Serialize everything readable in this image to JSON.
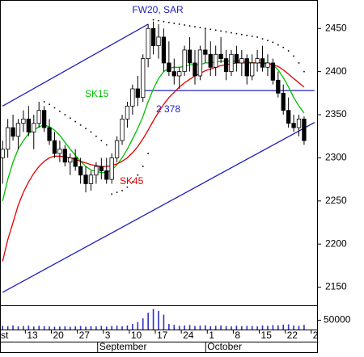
{
  "chart_data": {
    "type": "candlestick",
    "title": "FW20, SAR",
    "categories": [
      null,
      null,
      null,
      null,
      null,
      "13",
      null,
      null,
      null,
      null,
      "20",
      null,
      null,
      null,
      null,
      "27",
      null,
      null,
      null,
      null,
      "3",
      null,
      null,
      null,
      null,
      "10",
      null,
      null,
      null,
      null,
      "17",
      null,
      null,
      null,
      null,
      "24",
      null,
      null,
      null,
      null,
      "1",
      null,
      null,
      null,
      null,
      "8",
      null,
      null,
      null,
      null,
      "15",
      null,
      null,
      null,
      null,
      "22",
      null,
      null,
      null,
      null,
      "2"
    ],
    "months": [
      "st",
      "September",
      "October"
    ],
    "open": [
      2300,
      2310,
      2335,
      2325,
      2340,
      2345,
      2330,
      2340,
      2355,
      2335,
      2320,
      2305,
      2310,
      2295,
      2300,
      2290,
      2280,
      2270,
      2280,
      2290,
      2285,
      2275,
      2300,
      2320,
      2345,
      2360,
      2380,
      2370,
      2415,
      2450,
      2430,
      2440,
      2410,
      2400,
      2395,
      2400,
      2425,
      2410,
      2395,
      2425,
      2420,
      2405,
      2420,
      2415,
      2400,
      2420,
      2410,
      2415,
      2395,
      2410,
      2415,
      2405,
      2410,
      2390,
      2375,
      2355,
      2340,
      2335,
      2345,
      null,
      null
    ],
    "high": [
      2320,
      2345,
      2350,
      2345,
      2355,
      2360,
      2350,
      2365,
      2360,
      2345,
      2330,
      2320,
      2315,
      2305,
      2310,
      2300,
      2290,
      2285,
      2295,
      2300,
      2300,
      2305,
      2325,
      2350,
      2365,
      2385,
      2395,
      2420,
      2455,
      2458,
      2455,
      2450,
      2435,
      2415,
      2405,
      2430,
      2440,
      2425,
      2430,
      2450,
      2435,
      2430,
      2440,
      2425,
      2425,
      2430,
      2425,
      2420,
      2420,
      2425,
      2430,
      2420,
      2415,
      2400,
      2385,
      2370,
      2350,
      2350,
      2348,
      null,
      null
    ],
    "low": [
      2270,
      2300,
      2320,
      2310,
      2330,
      2325,
      2310,
      2335,
      2330,
      2315,
      2300,
      2295,
      2290,
      2280,
      2285,
      2270,
      2260,
      2262,
      2270,
      2275,
      2270,
      2270,
      2295,
      2315,
      2335,
      2350,
      2360,
      2365,
      2405,
      2420,
      2415,
      2400,
      2395,
      2385,
      2380,
      2395,
      2400,
      2385,
      2390,
      2410,
      2395,
      2395,
      2410,
      2390,
      2395,
      2400,
      2395,
      2385,
      2390,
      2400,
      2400,
      2395,
      2385,
      2370,
      2350,
      2335,
      2330,
      2325,
      2315,
      null,
      null
    ],
    "close": [
      2310,
      2335,
      2325,
      2340,
      2345,
      2330,
      2340,
      2355,
      2335,
      2320,
      2305,
      2310,
      2295,
      2300,
      2290,
      2280,
      2270,
      2280,
      2290,
      2285,
      2275,
      2300,
      2320,
      2345,
      2360,
      2380,
      2370,
      2415,
      2450,
      2430,
      2440,
      2410,
      2400,
      2395,
      2400,
      2425,
      2410,
      2395,
      2425,
      2420,
      2405,
      2420,
      2415,
      2400,
      2420,
      2410,
      2415,
      2395,
      2410,
      2415,
      2405,
      2410,
      2390,
      2375,
      2355,
      2340,
      2335,
      2345,
      2320,
      null,
      null
    ],
    "up_color": "#ffffff",
    "down_color": "#000000",
    "ylim": [
      2129,
      2483
    ],
    "yticks": [
      2150,
      2200,
      2250,
      2300,
      2350,
      2400,
      2450
    ],
    "overlays": [
      {
        "name": "SK15",
        "color": "#00c000",
        "values": [
          2250,
          2275,
          2295,
          2310,
          2320,
          2328,
          2332,
          2336,
          2338,
          2336,
          2332,
          2326,
          2318,
          2310,
          2303,
          2296,
          2290,
          2286,
          2284,
          2283,
          2283,
          2286,
          2292,
          2300,
          2310,
          2322,
          2334,
          2348,
          2365,
          2380,
          2392,
          2400,
          2404,
          2405,
          2405,
          2406,
          2408,
          2408,
          2408,
          2410,
          2410,
          2411,
          2412,
          2412,
          2412,
          2412,
          2412,
          2411,
          2410,
          2410,
          2410,
          2410,
          2408,
          2402,
          2393,
          2382,
          2370,
          2360,
          2352,
          null,
          null
        ]
      },
      {
        "name": "SK45",
        "color": "#e00000",
        "values": [
          2180,
          2205,
          2225,
          2245,
          2260,
          2272,
          2282,
          2290,
          2296,
          2300,
          2302,
          2302,
          2301,
          2300,
          2298,
          2296,
          2294,
          2292,
          2291,
          2290,
          2290,
          2291,
          2293,
          2296,
          2300,
          2306,
          2313,
          2322,
          2332,
          2343,
          2353,
          2362,
          2370,
          2376,
          2382,
          2387,
          2391,
          2395,
          2398,
          2401,
          2403,
          2405,
          2407,
          2408,
          2409,
          2410,
          2410,
          2410,
          2410,
          2410,
          2410,
          2409,
          2408,
          2406,
          2402,
          2397,
          2392,
          2387,
          2382,
          null,
          null
        ]
      }
    ],
    "sar": {
      "color": "#000000",
      "values": [
        null,
        null,
        null,
        null,
        null,
        null,
        null,
        null,
        2365,
        2362,
        2358,
        2354,
        2350,
        2346,
        2342,
        2338,
        2334,
        2330,
        2325,
        2320,
        2315,
        2258,
        2260,
        2262,
        2266,
        2272,
        2280,
        2290,
        2305,
        2460,
        2459,
        2458,
        2457,
        2456,
        2455,
        2454,
        2453,
        2452,
        2451,
        2450,
        2449,
        2448,
        2447,
        2446,
        2445,
        2444,
        2443,
        2442,
        2441,
        2440,
        2438,
        2436,
        2434,
        2431,
        2428,
        2424,
        2418,
        2410,
        2400,
        null,
        null
      ]
    },
    "level": {
      "value": 2378,
      "label": "2 378",
      "color": "#2020c0",
      "from": 27,
      "to": 60
    },
    "trendlines": [
      {
        "color": "#2020c0",
        "from": [
          0,
          2360
        ],
        "to": [
          28,
          2455
        ]
      },
      {
        "color": "#2020c0",
        "from": [
          0,
          2144
        ],
        "to": [
          60,
          2341
        ]
      }
    ],
    "volume": {
      "color": "#3030c0",
      "ylim": [
        0,
        117000
      ],
      "yticks": [
        50000
      ],
      "values": [
        20000,
        18000,
        22000,
        17000,
        19000,
        21000,
        16000,
        20000,
        18000,
        17000,
        15000,
        16000,
        18000,
        15000,
        17000,
        19000,
        16000,
        18000,
        17000,
        20000,
        16000,
        19000,
        21000,
        18000,
        22000,
        30000,
        40000,
        60000,
        90000,
        110000,
        100000,
        80000,
        30000,
        25000,
        20000,
        22000,
        24000,
        19000,
        21000,
        23000,
        18000,
        20000,
        22000,
        19000,
        17000,
        21000,
        18000,
        20000,
        19000,
        17000,
        22000,
        20000,
        24000,
        23000,
        26000,
        28000,
        22000,
        20000,
        25000,
        null,
        null
      ]
    }
  }
}
